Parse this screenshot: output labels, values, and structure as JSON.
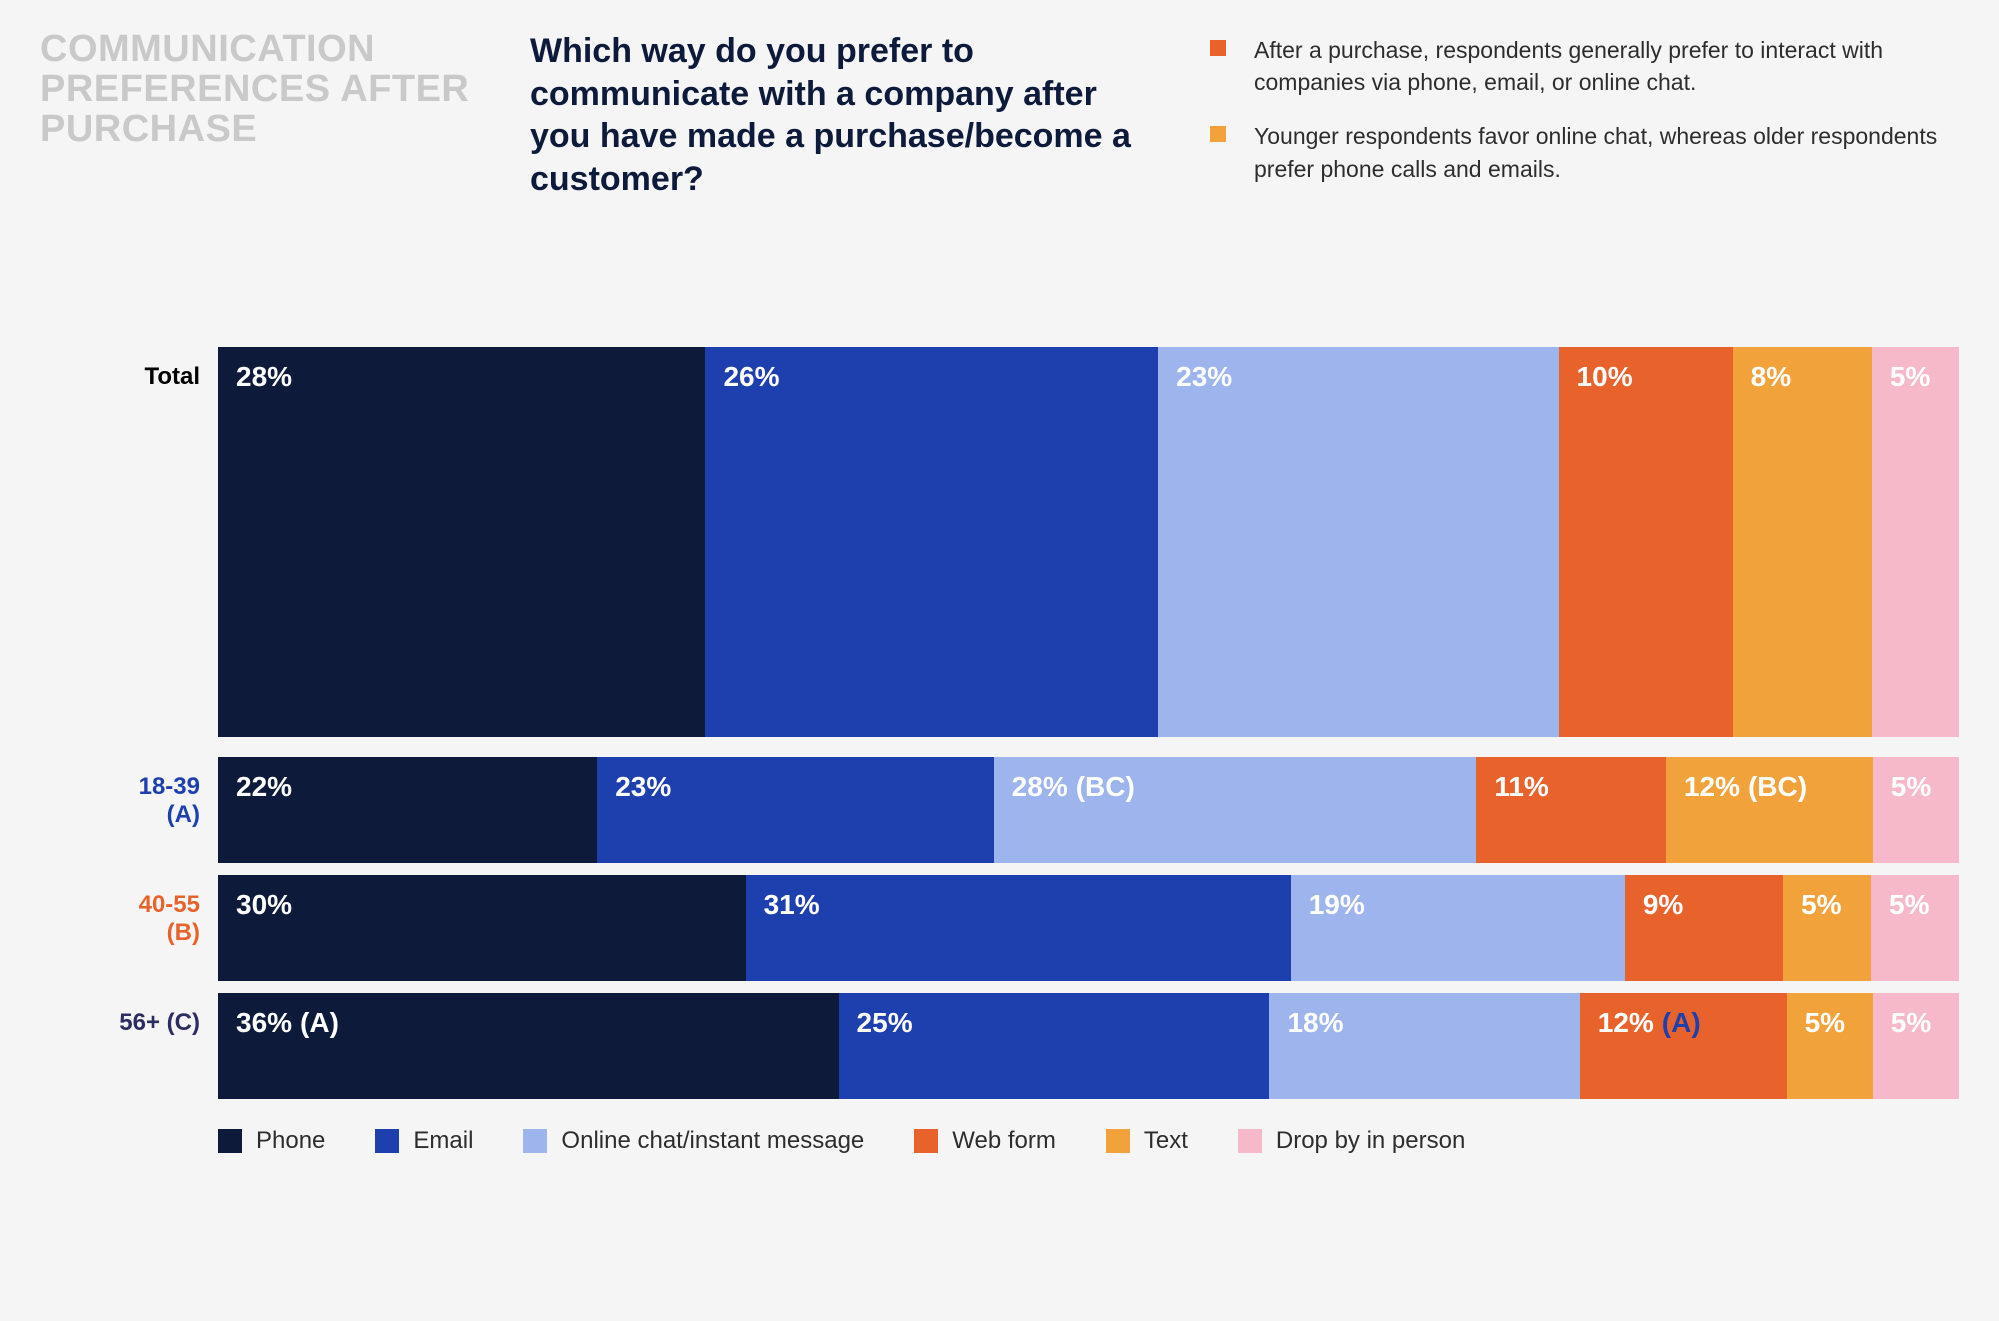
{
  "header": {
    "section_title": "COMMUNICATION PREFERENCES AFTER PURCHASE",
    "question": "Which way do you prefer to communicate with a company after you have made a purchase/become a customer?",
    "bullets": [
      {
        "text": "After a purchase, respondents generally prefer to interact with companies via phone, email, or online chat.",
        "bullet_color": "#e8622c"
      },
      {
        "text": "Younger respondents favor online chat, whereas older respondents prefer phone calls and emails.",
        "bullet_color": "#f2a23a"
      }
    ]
  },
  "chart": {
    "type": "stacked-bar-horizontal",
    "series": [
      {
        "key": "phone",
        "label": "Phone",
        "color": "#0d1a3a",
        "text_color": "#ffffff"
      },
      {
        "key": "email",
        "label": "Email",
        "color": "#1e3fae",
        "text_color": "#ffffff"
      },
      {
        "key": "chat",
        "label": "Online chat/instant message",
        "color": "#9db4ec",
        "text_color": "#ffffff"
      },
      {
        "key": "webform",
        "label": "Web form",
        "color": "#e8622c",
        "text_color": "#ffffff"
      },
      {
        "key": "text",
        "label": "Text",
        "color": "#f2a23a",
        "text_color": "#ffffff"
      },
      {
        "key": "inperson",
        "label": "Drop by in person",
        "color": "#f6b9c9",
        "text_color": "#ffffff"
      }
    ],
    "rows": [
      {
        "id": "total",
        "label": "Total",
        "label_color": "#000000",
        "is_total": true,
        "segments": [
          {
            "series": "phone",
            "value": 28,
            "display": "28%"
          },
          {
            "series": "email",
            "value": 26,
            "display": "26%"
          },
          {
            "series": "chat",
            "value": 23,
            "display": "23%"
          },
          {
            "series": "webform",
            "value": 10,
            "display": "10%"
          },
          {
            "series": "text",
            "value": 8,
            "display": "8%"
          },
          {
            "series": "inperson",
            "value": 5,
            "display": "5%"
          }
        ]
      },
      {
        "id": "age-18-39",
        "label": "18-39 (A)",
        "label_color": "#1e3fae",
        "is_total": false,
        "segments": [
          {
            "series": "phone",
            "value": 22,
            "display": "22%"
          },
          {
            "series": "email",
            "value": 23,
            "display": "23%"
          },
          {
            "series": "chat",
            "value": 28,
            "display": "28%",
            "sig": "(BC)"
          },
          {
            "series": "webform",
            "value": 11,
            "display": "11%"
          },
          {
            "series": "text",
            "value": 12,
            "display": "12%",
            "sig": "(BC)"
          },
          {
            "series": "inperson",
            "value": 5,
            "display": "5%"
          }
        ]
      },
      {
        "id": "age-40-55",
        "label": "40-55 (B)",
        "label_color": "#e8622c",
        "is_total": false,
        "segments": [
          {
            "series": "phone",
            "value": 30,
            "display": "30%"
          },
          {
            "series": "email",
            "value": 31,
            "display": "31%"
          },
          {
            "series": "chat",
            "value": 19,
            "display": "19%"
          },
          {
            "series": "webform",
            "value": 9,
            "display": "9%"
          },
          {
            "series": "text",
            "value": 5,
            "display": "5%"
          },
          {
            "series": "inperson",
            "value": 5,
            "display": "5%"
          }
        ]
      },
      {
        "id": "age-56plus",
        "label": "56+ (C)",
        "label_color": "#2d2d60",
        "is_total": false,
        "segments": [
          {
            "series": "phone",
            "value": 36,
            "display": "36%",
            "sig": "(A)"
          },
          {
            "series": "email",
            "value": 25,
            "display": "25%"
          },
          {
            "series": "chat",
            "value": 18,
            "display": "18%"
          },
          {
            "series": "webform",
            "value": 12,
            "display": "12%",
            "sig": "(A)",
            "sig_color": "#1e3fae"
          },
          {
            "series": "text",
            "value": 5,
            "display": "5%"
          },
          {
            "series": "inperson",
            "value": 5,
            "display": "5%"
          }
        ]
      }
    ]
  }
}
